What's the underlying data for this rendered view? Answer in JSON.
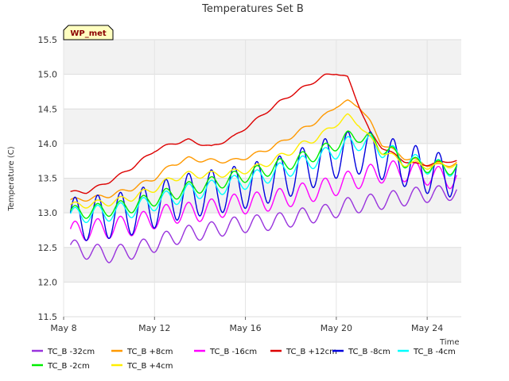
{
  "chart_data": {
    "type": "line",
    "title": "Temperatures Set B",
    "xlabel": "Time",
    "ylabel": "Temperature (C)",
    "badge": "WP_met",
    "xlim": [
      8,
      25.5
    ],
    "ylim": [
      11.5,
      15.5
    ],
    "grid": true,
    "legend_position": "bottom",
    "x_ticks": [
      {
        "value": 8,
        "label": "May 8"
      },
      {
        "value": 12,
        "label": "May 12"
      },
      {
        "value": 16,
        "label": "May 16"
      },
      {
        "value": 20,
        "label": "May 20"
      },
      {
        "value": 24,
        "label": "May 24"
      }
    ],
    "y_ticks": [
      "11.5",
      "12.0",
      "12.5",
      "13.0",
      "13.5",
      "14.0",
      "14.5",
      "15.0",
      "15.5"
    ],
    "x": [
      8.3,
      9.0,
      10.0,
      11.0,
      12.0,
      12.8,
      13.5,
      14.5,
      15.5,
      16.5,
      17.5,
      18.5,
      19.5,
      20.0,
      20.5,
      21.0,
      21.5,
      22.0,
      22.5,
      23.0,
      23.5,
      24.0,
      24.5,
      25.0,
      25.3
    ],
    "series": [
      {
        "name": "TC_B -32cm",
        "color": "#9933dd",
        "diurnal": 0.12,
        "values": [
          12.5,
          12.45,
          12.4,
          12.45,
          12.55,
          12.65,
          12.7,
          12.75,
          12.82,
          12.85,
          12.88,
          12.95,
          13.0,
          13.05,
          13.1,
          13.12,
          13.15,
          13.17,
          13.2,
          13.22,
          13.25,
          13.27,
          13.27,
          13.3,
          13.3
        ]
      },
      {
        "name": "TC_B +8cm",
        "color": "#ff9900",
        "diurnal": 0.03,
        "values": [
          13.18,
          13.2,
          13.25,
          13.35,
          13.5,
          13.7,
          13.78,
          13.75,
          13.75,
          13.85,
          14.0,
          14.2,
          14.4,
          14.55,
          14.6,
          14.55,
          14.3,
          14.0,
          13.9,
          13.8,
          13.75,
          13.7,
          13.68,
          13.7,
          13.72
        ]
      },
      {
        "name": "TC_B -16cm",
        "color": "#ff00ff",
        "diurnal": 0.15,
        "values": [
          12.72,
          12.75,
          12.78,
          12.82,
          12.92,
          13.0,
          13.0,
          13.05,
          13.12,
          13.15,
          13.2,
          13.28,
          13.35,
          13.4,
          13.45,
          13.5,
          13.55,
          13.58,
          13.6,
          13.6,
          13.58,
          13.55,
          13.52,
          13.5,
          13.5
        ]
      },
      {
        "name": "TC_B +12cm",
        "color": "#dd0000",
        "diurnal": 0.02,
        "values": [
          13.3,
          13.3,
          13.45,
          13.65,
          13.9,
          14.0,
          14.05,
          13.95,
          14.1,
          14.35,
          14.6,
          14.8,
          14.98,
          15.02,
          14.95,
          14.55,
          14.15,
          13.95,
          13.85,
          13.75,
          13.7,
          13.7,
          13.72,
          13.75,
          13.75
        ]
      },
      {
        "name": "TC_B -8cm",
        "color": "#0000dd",
        "diurnal": 0.32,
        "values": [
          12.9,
          12.92,
          12.95,
          13.0,
          13.1,
          13.2,
          13.25,
          13.3,
          13.35,
          13.42,
          13.5,
          13.62,
          13.75,
          13.82,
          13.85,
          13.88,
          13.85,
          13.8,
          13.75,
          13.7,
          13.65,
          13.6,
          13.55,
          13.55,
          13.6
        ]
      },
      {
        "name": "TC_B -4cm",
        "color": "#00ffff",
        "diurnal": 0.12,
        "values": [
          12.95,
          12.98,
          13.0,
          13.05,
          13.15,
          13.22,
          13.3,
          13.35,
          13.42,
          13.5,
          13.6,
          13.7,
          13.82,
          13.9,
          13.98,
          14.02,
          14.0,
          13.92,
          13.85,
          13.78,
          13.72,
          13.68,
          13.65,
          13.65,
          13.65
        ]
      },
      {
        "name": "TC_B -2cm",
        "color": "#00ee00",
        "diurnal": 0.1,
        "values": [
          13.0,
          13.02,
          13.05,
          13.1,
          13.2,
          13.28,
          13.35,
          13.42,
          13.5,
          13.58,
          13.68,
          13.78,
          13.9,
          14.0,
          14.08,
          14.12,
          14.05,
          13.95,
          13.85,
          13.75,
          13.7,
          13.68,
          13.66,
          13.65,
          13.65
        ]
      },
      {
        "name": "TC_B +4cm",
        "color": "#ffee00",
        "diurnal": 0.05,
        "values": [
          13.1,
          13.12,
          13.15,
          13.22,
          13.35,
          13.5,
          13.55,
          13.55,
          13.58,
          13.65,
          13.8,
          13.98,
          14.15,
          14.3,
          14.38,
          14.3,
          14.05,
          13.9,
          13.8,
          13.72,
          13.7,
          13.68,
          13.68,
          13.7,
          13.7
        ]
      }
    ]
  }
}
